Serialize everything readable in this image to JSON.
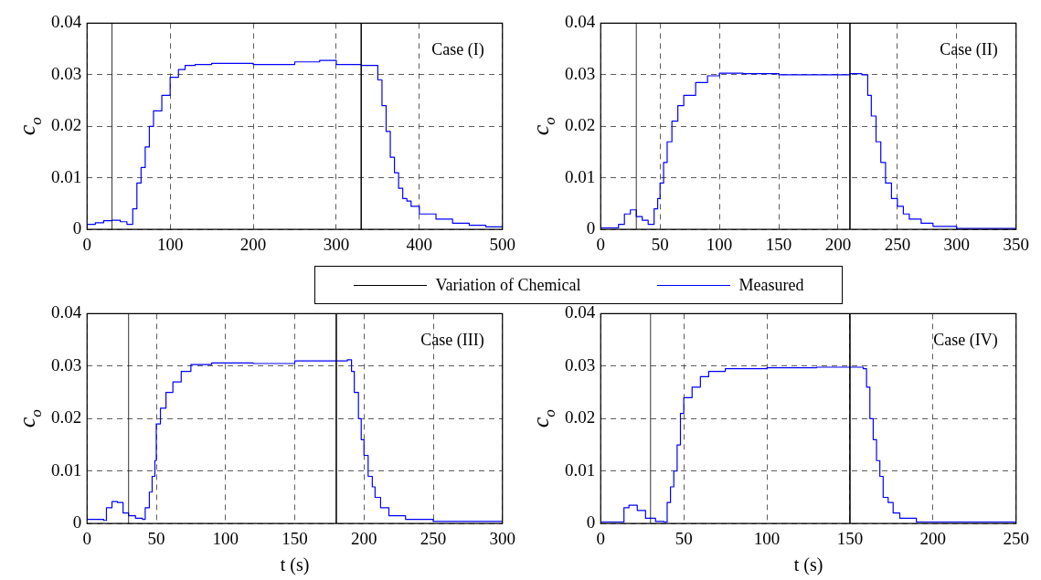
{
  "chart_data": [
    {
      "type": "step",
      "xlim": [
        0,
        500
      ],
      "xticks": [
        0,
        100,
        200,
        300,
        400,
        500
      ],
      "ylim": [
        0,
        0.04
      ],
      "yticks": [
        0,
        0.01,
        0.02,
        0.03,
        0.04
      ],
      "ylabel": "c$_{o}$",
      "grid": true,
      "legend": "bottom",
      "annotations": [
        "Case (I)"
      ],
      "series": [
        {
          "name": "Variation of Chemical",
          "type": "line",
          "color": "#000000",
          "x": [
            30,
            30,
            180,
            330,
            330
          ],
          "values": [
            0,
            0.04,
            null,
            0.04,
            0
          ]
        },
        {
          "name": "Measured",
          "color": "#0000ff",
          "x": [
            0,
            10,
            20,
            30,
            40,
            48,
            55,
            60,
            65,
            70,
            75,
            80,
            90,
            100,
            110,
            118,
            130,
            150,
            200,
            250,
            280,
            300,
            330,
            345,
            350,
            355,
            360,
            365,
            370,
            375,
            380,
            385,
            390,
            400,
            420,
            440,
            460,
            480,
            500
          ],
          "values": [
            0.001,
            0.0013,
            0.0017,
            0.0018,
            0.0015,
            0.001,
            0.004,
            0.009,
            0.012,
            0.016,
            0.02,
            0.023,
            0.026,
            0.0295,
            0.031,
            0.0318,
            0.032,
            0.0322,
            0.032,
            0.0325,
            0.0328,
            0.032,
            0.0318,
            0.0318,
            0.029,
            0.024,
            0.019,
            0.014,
            0.011,
            0.008,
            0.006,
            0.0055,
            0.0045,
            0.003,
            0.002,
            0.0012,
            0.0008,
            0.0005,
            0.0008
          ]
        }
      ]
    },
    {
      "type": "step",
      "xlim": [
        0,
        350
      ],
      "xticks": [
        0,
        50,
        100,
        150,
        200,
        250,
        300,
        350
      ],
      "ylim": [
        0,
        0.04
      ],
      "yticks": [
        0,
        0.01,
        0.02,
        0.03,
        0.04
      ],
      "ylabel": "c$_{o}$",
      "grid": true,
      "annotations": [
        "Case (II)"
      ],
      "series": [
        {
          "type": "line",
          "color": "#000000",
          "x": [
            30,
            30,
            120,
            210,
            210
          ],
          "values": [
            0,
            0.04,
            null,
            0.04,
            0
          ]
        },
        {
          "color": "#0000ff",
          "x": [
            0,
            10,
            15,
            20,
            25,
            28,
            30,
            35,
            40,
            45,
            48,
            50,
            53,
            56,
            60,
            65,
            70,
            80,
            90,
            100,
            120,
            150,
            180,
            200,
            210,
            220,
            225,
            228,
            232,
            236,
            240,
            245,
            250,
            255,
            260,
            270,
            280,
            300,
            320,
            350
          ],
          "values": [
            0.0003,
            0.0003,
            0.001,
            0.003,
            0.0038,
            0.0038,
            0.0025,
            0.0018,
            0.001,
            0.004,
            0.006,
            0.009,
            0.013,
            0.017,
            0.021,
            0.024,
            0.026,
            0.0285,
            0.0298,
            0.0303,
            0.0302,
            0.03,
            0.03,
            0.03,
            0.0302,
            0.03,
            0.026,
            0.022,
            0.017,
            0.013,
            0.009,
            0.006,
            0.0045,
            0.003,
            0.002,
            0.0012,
            0.0006,
            0.0002,
            0.0002,
            0.0002
          ]
        }
      ]
    },
    {
      "type": "step",
      "xlim": [
        0,
        300
      ],
      "xticks": [
        0,
        50,
        100,
        150,
        200,
        250,
        300
      ],
      "ylim": [
        0,
        0.04
      ],
      "yticks": [
        0,
        0.01,
        0.02,
        0.03,
        0.04
      ],
      "xlabel": "t (s)",
      "ylabel": "c$_{o}$",
      "grid": true,
      "annotations": [
        "Case (III)"
      ],
      "series": [
        {
          "type": "line",
          "color": "#000000",
          "x": [
            30,
            30,
            105,
            180,
            180
          ],
          "values": [
            0,
            0.04,
            null,
            0.04,
            0
          ]
        },
        {
          "color": "#0000ff",
          "x": [
            0,
            12,
            14,
            18,
            22,
            26,
            30,
            35,
            40,
            42,
            45,
            47,
            49,
            50,
            53,
            57,
            62,
            68,
            75,
            90,
            120,
            150,
            180,
            188,
            191,
            193,
            196,
            198,
            200,
            203,
            206,
            208,
            212,
            218,
            230,
            250,
            300
          ],
          "values": [
            0.0008,
            0.0006,
            0.003,
            0.0042,
            0.004,
            0.002,
            0.0015,
            0.001,
            0.0008,
            0.003,
            0.006,
            0.009,
            0.012,
            0.019,
            0.022,
            0.025,
            0.027,
            0.029,
            0.0303,
            0.0306,
            0.0305,
            0.031,
            0.031,
            0.0312,
            0.029,
            0.025,
            0.02,
            0.016,
            0.013,
            0.009,
            0.007,
            0.005,
            0.003,
            0.0015,
            0.0008,
            0.0004,
            0.0002
          ]
        }
      ]
    },
    {
      "type": "step",
      "xlim": [
        0,
        250
      ],
      "xticks": [
        0,
        50,
        100,
        150,
        200,
        250
      ],
      "ylim": [
        0,
        0.04
      ],
      "yticks": [
        0,
        0.01,
        0.02,
        0.03,
        0.04
      ],
      "xlabel": "t (s)",
      "ylabel": "c$_{o}$",
      "grid": true,
      "annotations": [
        "Case (IV)"
      ],
      "series": [
        {
          "type": "line",
          "color": "#000000",
          "x": [
            30,
            30,
            90,
            150,
            150
          ],
          "values": [
            0,
            0.04,
            null,
            0.04,
            0
          ]
        },
        {
          "color": "#0000ff",
          "x": [
            0,
            12,
            14,
            17,
            22,
            27,
            33,
            38,
            40,
            42,
            44,
            46,
            48,
            50,
            55,
            60,
            65,
            75,
            100,
            130,
            150,
            158,
            160,
            162,
            164,
            166,
            168,
            170,
            173,
            176,
            180,
            190,
            250
          ],
          "values": [
            0.0003,
            0.0003,
            0.003,
            0.0035,
            0.0025,
            0.001,
            0.0004,
            0.0003,
            0.004,
            0.007,
            0.01,
            0.015,
            0.021,
            0.024,
            0.026,
            0.028,
            0.029,
            0.0295,
            0.0297,
            0.0298,
            0.0298,
            0.0295,
            0.026,
            0.02,
            0.016,
            0.012,
            0.009,
            0.005,
            0.004,
            0.002,
            0.001,
            0.0003,
            0.0002
          ]
        }
      ]
    }
  ]
}
